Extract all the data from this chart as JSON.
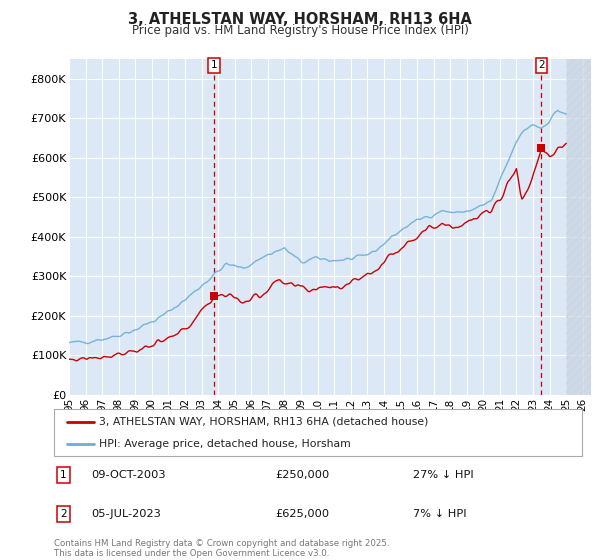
{
  "title": "3, ATHELSTAN WAY, HORSHAM, RH13 6HA",
  "subtitle": "Price paid vs. HM Land Registry's House Price Index (HPI)",
  "ylim": [
    0,
    850000
  ],
  "yticks": [
    0,
    100000,
    200000,
    300000,
    400000,
    500000,
    600000,
    700000,
    800000
  ],
  "ytick_labels": [
    "£0",
    "£100K",
    "£200K",
    "£300K",
    "£400K",
    "£500K",
    "£600K",
    "£700K",
    "£800K"
  ],
  "xlim_start": 1995.0,
  "xlim_end": 2026.5,
  "sale1_x": 2003.77,
  "sale1_y": 250000,
  "sale2_x": 2023.51,
  "sale2_y": 625000,
  "legend1": "3, ATHELSTAN WAY, HORSHAM, RH13 6HA (detached house)",
  "legend2": "HPI: Average price, detached house, Horsham",
  "annotation1_date": "09-OCT-2003",
  "annotation1_price": "£250,000",
  "annotation1_hpi": "27% ↓ HPI",
  "annotation2_date": "05-JUL-2023",
  "annotation2_price": "£625,000",
  "annotation2_hpi": "7% ↓ HPI",
  "footer": "Contains HM Land Registry data © Crown copyright and database right 2025.\nThis data is licensed under the Open Government Licence v3.0.",
  "hpi_color": "#6baed6",
  "price_color": "#cc0000",
  "bg_color": "#dce8f5",
  "grid_color": "#ffffff",
  "vline_color": "#cc0000",
  "hatch_start": 2025.0
}
